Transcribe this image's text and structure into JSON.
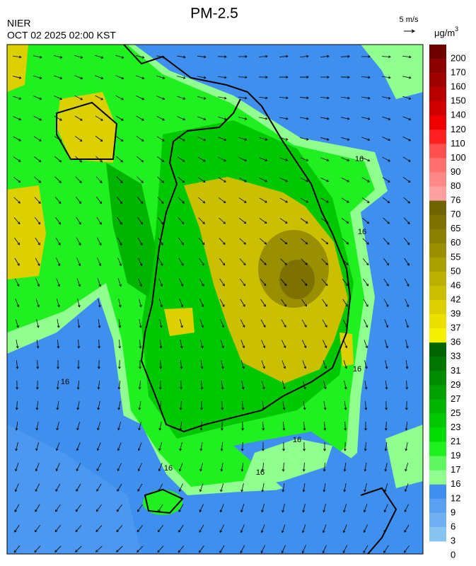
{
  "header": {
    "title": "PM-2.5",
    "agency": "NIER",
    "datetime": "OCT 02 2025 02:00 KST",
    "wind_scale": "5 m/s",
    "unit": "μg/m",
    "unit_exp": "3"
  },
  "contour_labels": [
    "16",
    "16",
    "16",
    "16",
    "16",
    "16",
    "16"
  ],
  "colorbar": {
    "labels": [
      200,
      170,
      160,
      150,
      140,
      120,
      110,
      100,
      90,
      80,
      76,
      70,
      65,
      60,
      55,
      50,
      46,
      42,
      39,
      37,
      36,
      33,
      31,
      29,
      27,
      25,
      23,
      21,
      19,
      17,
      16,
      12,
      9,
      6,
      3,
      0
    ],
    "colors": [
      "#6e0000",
      "#8b0000",
      "#a00000",
      "#b80000",
      "#d00000",
      "#ee0000",
      "#ff2020",
      "#ff5050",
      "#ff7070",
      "#ff8888",
      "#ffa0a0",
      "#6e6400",
      "#7d7200",
      "#8a8000",
      "#9a8f00",
      "#aa9f00",
      "#bbb000",
      "#cbc000",
      "#dcd000",
      "#ebe000",
      "#f5f000",
      "#006400",
      "#007800",
      "#008c00",
      "#00a000",
      "#00b400",
      "#00c800",
      "#00dc00",
      "#20f020",
      "#60f860",
      "#90ff90",
      "#3f8fef",
      "#5a9ff0",
      "#70b0f0",
      "#88c4f0"
    ]
  }
}
